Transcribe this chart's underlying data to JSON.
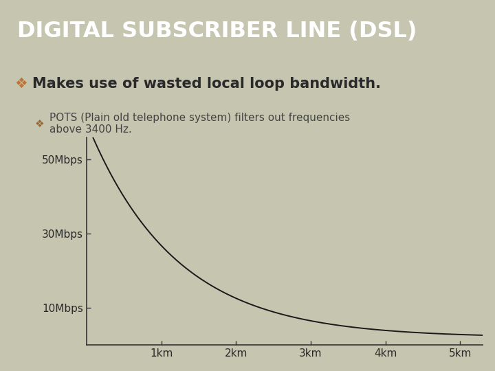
{
  "title": "DIGITAL SUBSCRIBER LINE (DSL)",
  "title_bg_color": "#4a3f3f",
  "title_text_color": "#ffffff",
  "body_bg_color": "#c5c5b0",
  "bullet1": "Makes use of wasted local loop bandwidth.",
  "bullet1_color": "#2a2a2a",
  "bullet2": "POTS (Plain old telephone system) filters out frequencies\nabove 3400 Hz.",
  "bullet2_color": "#444444",
  "diamond_color1": "#b8763a",
  "diamond_color2": "#9a6830",
  "x_ticks_labels": [
    "1km",
    "2km",
    "3km",
    "4km",
    "5km"
  ],
  "x_ticks_pos": [
    1,
    2,
    3,
    4,
    5
  ],
  "y_ticks_labels": [
    "10Mbps",
    "30Mbps",
    "50Mbps"
  ],
  "y_ticks_pos": [
    10,
    30,
    50
  ],
  "curve_color": "#1a1a1a",
  "axis_color": "#333333",
  "plot_bg_color": "#c5c5b0",
  "xlim": [
    0,
    5.3
  ],
  "ylim": [
    0,
    56
  ],
  "curve_a": 2.0,
  "curve_b": 58.0,
  "curve_decay": 0.85
}
